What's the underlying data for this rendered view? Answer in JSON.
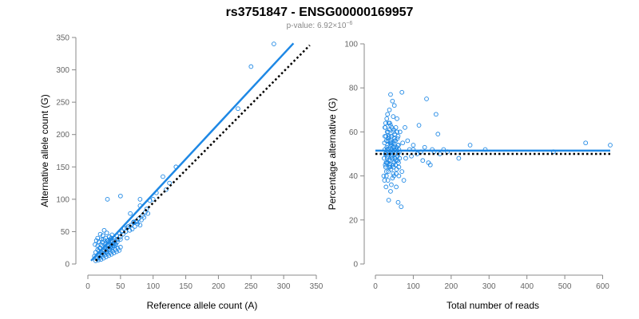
{
  "figure": {
    "title": "rs3751847 - ENSG00000169957",
    "subtitle_prefix": "p-value: 6.92×10",
    "subtitle_exponent": "−6",
    "point_color": "#1e88e5",
    "fit_color": "#1e88e5",
    "reference_color": "#000000"
  },
  "chart_data": [
    {
      "type": "scatter",
      "xlabel": "Reference allele count (A)",
      "ylabel": "Alternative allele count (G)",
      "xlim": [
        0,
        350
      ],
      "ylim": [
        0,
        350
      ],
      "xticks": [
        0,
        50,
        100,
        150,
        200,
        250,
        300,
        350
      ],
      "yticks": [
        0,
        50,
        100,
        150,
        200,
        250,
        300,
        350
      ],
      "grid": false,
      "fit_line": {
        "x": [
          5,
          315
        ],
        "y": [
          5,
          341
        ]
      },
      "reference_line": {
        "x": [
          12,
          340
        ],
        "y": [
          5,
          338
        ]
      },
      "points": [
        [
          10,
          12
        ],
        [
          12,
          18
        ],
        [
          14,
          10
        ],
        [
          15,
          22
        ],
        [
          16,
          15
        ],
        [
          18,
          25
        ],
        [
          20,
          14
        ],
        [
          22,
          28
        ],
        [
          24,
          20
        ],
        [
          26,
          30
        ],
        [
          28,
          18
        ],
        [
          30,
          24
        ],
        [
          32,
          34
        ],
        [
          34,
          26
        ],
        [
          36,
          36
        ],
        [
          38,
          30
        ],
        [
          40,
          40
        ],
        [
          42,
          32
        ],
        [
          44,
          44
        ],
        [
          46,
          38
        ],
        [
          48,
          48
        ],
        [
          50,
          42
        ],
        [
          52,
          50
        ],
        [
          54,
          46
        ],
        [
          56,
          55
        ],
        [
          11,
          30
        ],
        [
          13,
          36
        ],
        [
          15,
          40
        ],
        [
          17,
          34
        ],
        [
          19,
          46
        ],
        [
          21,
          38
        ],
        [
          23,
          44
        ],
        [
          25,
          52
        ],
        [
          27,
          40
        ],
        [
          29,
          48
        ],
        [
          31,
          36
        ],
        [
          33,
          42
        ],
        [
          35,
          30
        ],
        [
          37,
          45
        ],
        [
          39,
          28
        ],
        [
          41,
          36
        ],
        [
          12,
          5
        ],
        [
          14,
          8
        ],
        [
          16,
          6
        ],
        [
          18,
          10
        ],
        [
          20,
          7
        ],
        [
          22,
          12
        ],
        [
          24,
          9
        ],
        [
          26,
          14
        ],
        [
          28,
          11
        ],
        [
          30,
          16
        ],
        [
          32,
          13
        ],
        [
          34,
          18
        ],
        [
          36,
          15
        ],
        [
          38,
          20
        ],
        [
          40,
          17
        ],
        [
          42,
          22
        ],
        [
          44,
          19
        ],
        [
          46,
          24
        ],
        [
          48,
          21
        ],
        [
          50,
          26
        ],
        [
          15,
          28
        ],
        [
          17,
          20
        ],
        [
          19,
          24
        ],
        [
          21,
          18
        ],
        [
          23,
          16
        ],
        [
          25,
          22
        ],
        [
          27,
          26
        ],
        [
          29,
          20
        ],
        [
          31,
          28
        ],
        [
          33,
          22
        ],
        [
          35,
          26
        ],
        [
          37,
          24
        ],
        [
          39,
          32
        ],
        [
          41,
          28
        ],
        [
          43,
          30
        ],
        [
          45,
          34
        ],
        [
          20,
          30
        ],
        [
          22,
          34
        ],
        [
          24,
          38
        ],
        [
          26,
          24
        ],
        [
          28,
          32
        ],
        [
          30,
          36
        ],
        [
          32,
          30
        ],
        [
          34,
          38
        ],
        [
          36,
          40
        ],
        [
          38,
          26
        ],
        [
          58,
          50
        ],
        [
          60,
          56
        ],
        [
          62,
          58
        ],
        [
          64,
          52
        ],
        [
          66,
          60
        ],
        [
          68,
          54
        ],
        [
          70,
          64
        ],
        [
          72,
          58
        ],
        [
          74,
          66
        ],
        [
          76,
          62
        ],
        [
          78,
          70
        ],
        [
          80,
          60
        ],
        [
          82,
          68
        ],
        [
          84,
          75
        ],
        [
          86,
          72
        ],
        [
          88,
          80
        ],
        [
          90,
          85
        ],
        [
          92,
          78
        ],
        [
          30,
          100
        ],
        [
          50,
          105
        ],
        [
          50,
          38
        ],
        [
          60,
          40
        ],
        [
          65,
          78
        ],
        [
          70,
          65
        ],
        [
          75,
          65
        ],
        [
          80,
          90
        ],
        [
          80,
          100
        ],
        [
          95,
          98
        ],
        [
          100,
          100
        ],
        [
          105,
          110
        ],
        [
          115,
          135
        ],
        [
          120,
          115
        ],
        [
          125,
          125
        ],
        [
          135,
          150
        ],
        [
          230,
          240
        ],
        [
          250,
          305
        ],
        [
          285,
          340
        ]
      ]
    },
    {
      "type": "scatter",
      "xlabel": "Total number of reads",
      "ylabel": "Percentage alternative (G)",
      "xlim": [
        0,
        620
      ],
      "ylim": [
        0,
        100
      ],
      "xticks": [
        0,
        100,
        200,
        300,
        400,
        500,
        600
      ],
      "yticks": [
        0,
        20,
        40,
        60,
        80,
        100
      ],
      "grid": false,
      "fit_line": {
        "x": [
          0,
          620
        ],
        "y": [
          51.5,
          51.5
        ]
      },
      "reference_line": {
        "x": [
          0,
          620
        ],
        "y": [
          50,
          50
        ]
      },
      "points": [
        [
          22,
          40
        ],
        [
          24,
          55
        ],
        [
          25,
          62
        ],
        [
          26,
          45
        ],
        [
          27,
          50
        ],
        [
          28,
          58
        ],
        [
          29,
          42
        ],
        [
          30,
          66
        ],
        [
          31,
          48
        ],
        [
          32,
          54
        ],
        [
          33,
          38
        ],
        [
          34,
          60
        ],
        [
          35,
          52
        ],
        [
          36,
          44
        ],
        [
          37,
          70
        ],
        [
          38,
          56
        ],
        [
          39,
          47
        ],
        [
          40,
          63
        ],
        [
          41,
          51
        ],
        [
          42,
          36
        ],
        [
          43,
          58
        ],
        [
          44,
          49
        ],
        [
          45,
          74
        ],
        [
          46,
          53
        ],
        [
          47,
          41
        ],
        [
          48,
          61
        ],
        [
          49,
          46
        ],
        [
          50,
          57
        ],
        [
          23,
          48
        ],
        [
          25,
          52
        ],
        [
          27,
          44
        ],
        [
          29,
          56
        ],
        [
          31,
          60
        ],
        [
          33,
          46
        ],
        [
          35,
          64
        ],
        [
          37,
          50
        ],
        [
          39,
          54
        ],
        [
          41,
          43
        ],
        [
          43,
          62
        ],
        [
          45,
          48
        ],
        [
          47,
          55
        ],
        [
          49,
          40
        ],
        [
          51,
          59
        ],
        [
          53,
          45
        ],
        [
          55,
          52
        ],
        [
          57,
          66
        ],
        [
          59,
          47
        ],
        [
          61,
          54
        ],
        [
          24,
          38
        ],
        [
          26,
          62
        ],
        [
          28,
          35
        ],
        [
          30,
          46
        ],
        [
          32,
          68
        ],
        [
          34,
          42
        ],
        [
          36,
          58
        ],
        [
          38,
          64
        ],
        [
          40,
          33
        ],
        [
          42,
          55
        ],
        [
          44,
          50
        ],
        [
          46,
          45
        ],
        [
          48,
          60
        ],
        [
          50,
          52
        ],
        [
          52,
          48
        ],
        [
          54,
          62
        ],
        [
          56,
          43
        ],
        [
          58,
          57
        ],
        [
          60,
          50
        ],
        [
          62,
          44
        ],
        [
          25,
          58
        ],
        [
          27,
          64
        ],
        [
          29,
          40
        ],
        [
          31,
          52
        ],
        [
          33,
          56
        ],
        [
          35,
          47
        ],
        [
          37,
          61
        ],
        [
          39,
          44
        ],
        [
          41,
          58
        ],
        [
          43,
          52
        ],
        [
          45,
          39
        ],
        [
          47,
          67
        ],
        [
          49,
          53
        ],
        [
          51,
          48
        ],
        [
          53,
          56
        ],
        [
          55,
          41
        ],
        [
          57,
          60
        ],
        [
          59,
          54
        ],
        [
          61,
          46
        ],
        [
          63,
          51
        ],
        [
          26,
          50
        ],
        [
          28,
          46
        ],
        [
          30,
          53
        ],
        [
          32,
          49
        ],
        [
          34,
          57
        ],
        [
          36,
          51
        ],
        [
          38,
          45
        ],
        [
          40,
          55
        ],
        [
          42,
          49
        ],
        [
          44,
          54
        ],
        [
          46,
          51
        ],
        [
          48,
          44
        ],
        [
          50,
          56
        ],
        [
          52,
          50
        ],
        [
          54,
          47
        ],
        [
          56,
          53
        ],
        [
          58,
          49
        ],
        [
          60,
          58
        ],
        [
          62,
          52
        ],
        [
          64,
          48
        ],
        [
          35,
          29
        ],
        [
          40,
          77
        ],
        [
          50,
          72
        ],
        [
          55,
          35
        ],
        [
          60,
          28
        ],
        [
          62,
          40
        ],
        [
          65,
          60
        ],
        [
          68,
          26
        ],
        [
          70,
          78
        ],
        [
          70,
          42
        ],
        [
          72,
          55
        ],
        [
          75,
          38
        ],
        [
          78,
          62
        ],
        [
          80,
          48
        ],
        [
          85,
          56
        ],
        [
          90,
          52
        ],
        [
          95,
          49
        ],
        [
          100,
          54
        ],
        [
          100,
          52
        ],
        [
          110,
          50
        ],
        [
          115,
          63
        ],
        [
          120,
          51
        ],
        [
          125,
          47
        ],
        [
          130,
          53
        ],
        [
          135,
          75
        ],
        [
          140,
          46
        ],
        [
          145,
          45
        ],
        [
          150,
          52
        ],
        [
          155,
          51
        ],
        [
          160,
          68
        ],
        [
          165,
          59
        ],
        [
          170,
          50
        ],
        [
          180,
          52
        ],
        [
          190,
          51
        ],
        [
          220,
          48
        ],
        [
          250,
          54
        ],
        [
          290,
          52
        ],
        [
          470,
          51
        ],
        [
          555,
          55
        ],
        [
          620,
          54
        ]
      ]
    }
  ]
}
